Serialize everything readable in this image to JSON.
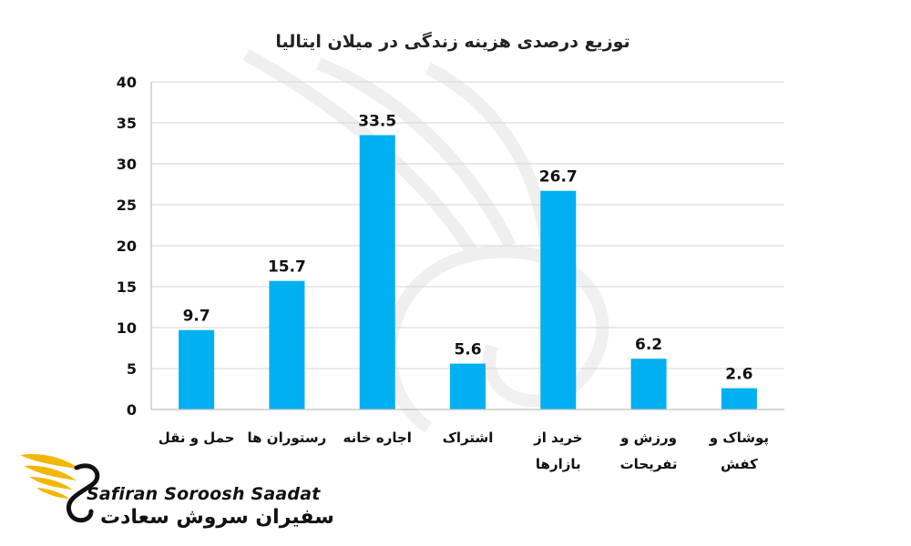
{
  "chart_data": {
    "type": "bar",
    "title": "توزیع درصدی هزینه زندگی در میلان ایتالیا",
    "categories": [
      [
        "حمل و نقل"
      ],
      [
        "رستوران ها"
      ],
      [
        "اجاره خانه"
      ],
      [
        "اشتراک"
      ],
      [
        "خرید از",
        "بازارها"
      ],
      [
        "ورزش و",
        "تفریحات"
      ],
      [
        "پوشاک و",
        "کفش"
      ]
    ],
    "values": [
      9.7,
      15.7,
      33.5,
      5.6,
      26.7,
      6.2,
      2.6
    ],
    "ylim": [
      0,
      40
    ],
    "yticks": [
      0,
      5,
      10,
      15,
      20,
      25,
      30,
      35,
      40
    ],
    "grid": true,
    "bar_color": "#00b0f0",
    "xlabel": "",
    "ylabel": ""
  },
  "brand": {
    "name_en": "Safiran Soroosh Saadat",
    "name_fa": "سفیران سروش سعادت",
    "accent": "#f2b705"
  }
}
